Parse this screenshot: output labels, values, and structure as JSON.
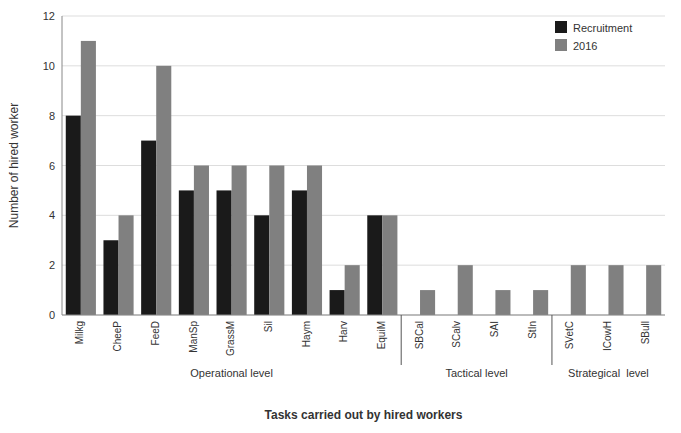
{
  "chart_data": {
    "type": "bar",
    "xlabel": "Tasks carried out by hired workers",
    "ylabel": "Number of hired worker",
    "categories": [
      "Milkg",
      "CheeP",
      "FeeD",
      "ManSp",
      "GrassM",
      "Sil",
      "Haym",
      "Harv",
      "EquiM",
      "SBCal",
      "SCalv",
      "SAI",
      "StIn",
      "SVetC",
      "ICowH",
      "SBull"
    ],
    "series": [
      {
        "name": "Recruitment",
        "color": "#1a1a1a",
        "values": [
          8,
          3,
          7,
          5,
          5,
          4,
          5,
          1,
          4,
          0,
          0,
          0,
          0,
          0,
          0,
          0
        ]
      },
      {
        "name": "2016",
        "color": "#808080",
        "values": [
          11,
          4,
          10,
          6,
          6,
          6,
          6,
          2,
          4,
          1,
          2,
          1,
          1,
          2,
          2,
          2
        ]
      }
    ],
    "annotations": [
      {
        "text": "Operational level",
        "from": "Milkg",
        "to": "EquiM"
      },
      {
        "text": "Tactical level",
        "from": "SBCal",
        "to": "StIn"
      },
      {
        "text": "Strategical  level",
        "from": "SVetC",
        "to": "SBull"
      }
    ],
    "ylim": [
      0,
      12
    ],
    "yticks": [
      0,
      2,
      4,
      6,
      8,
      10,
      12
    ],
    "grid": true,
    "legend": "upper right"
  }
}
